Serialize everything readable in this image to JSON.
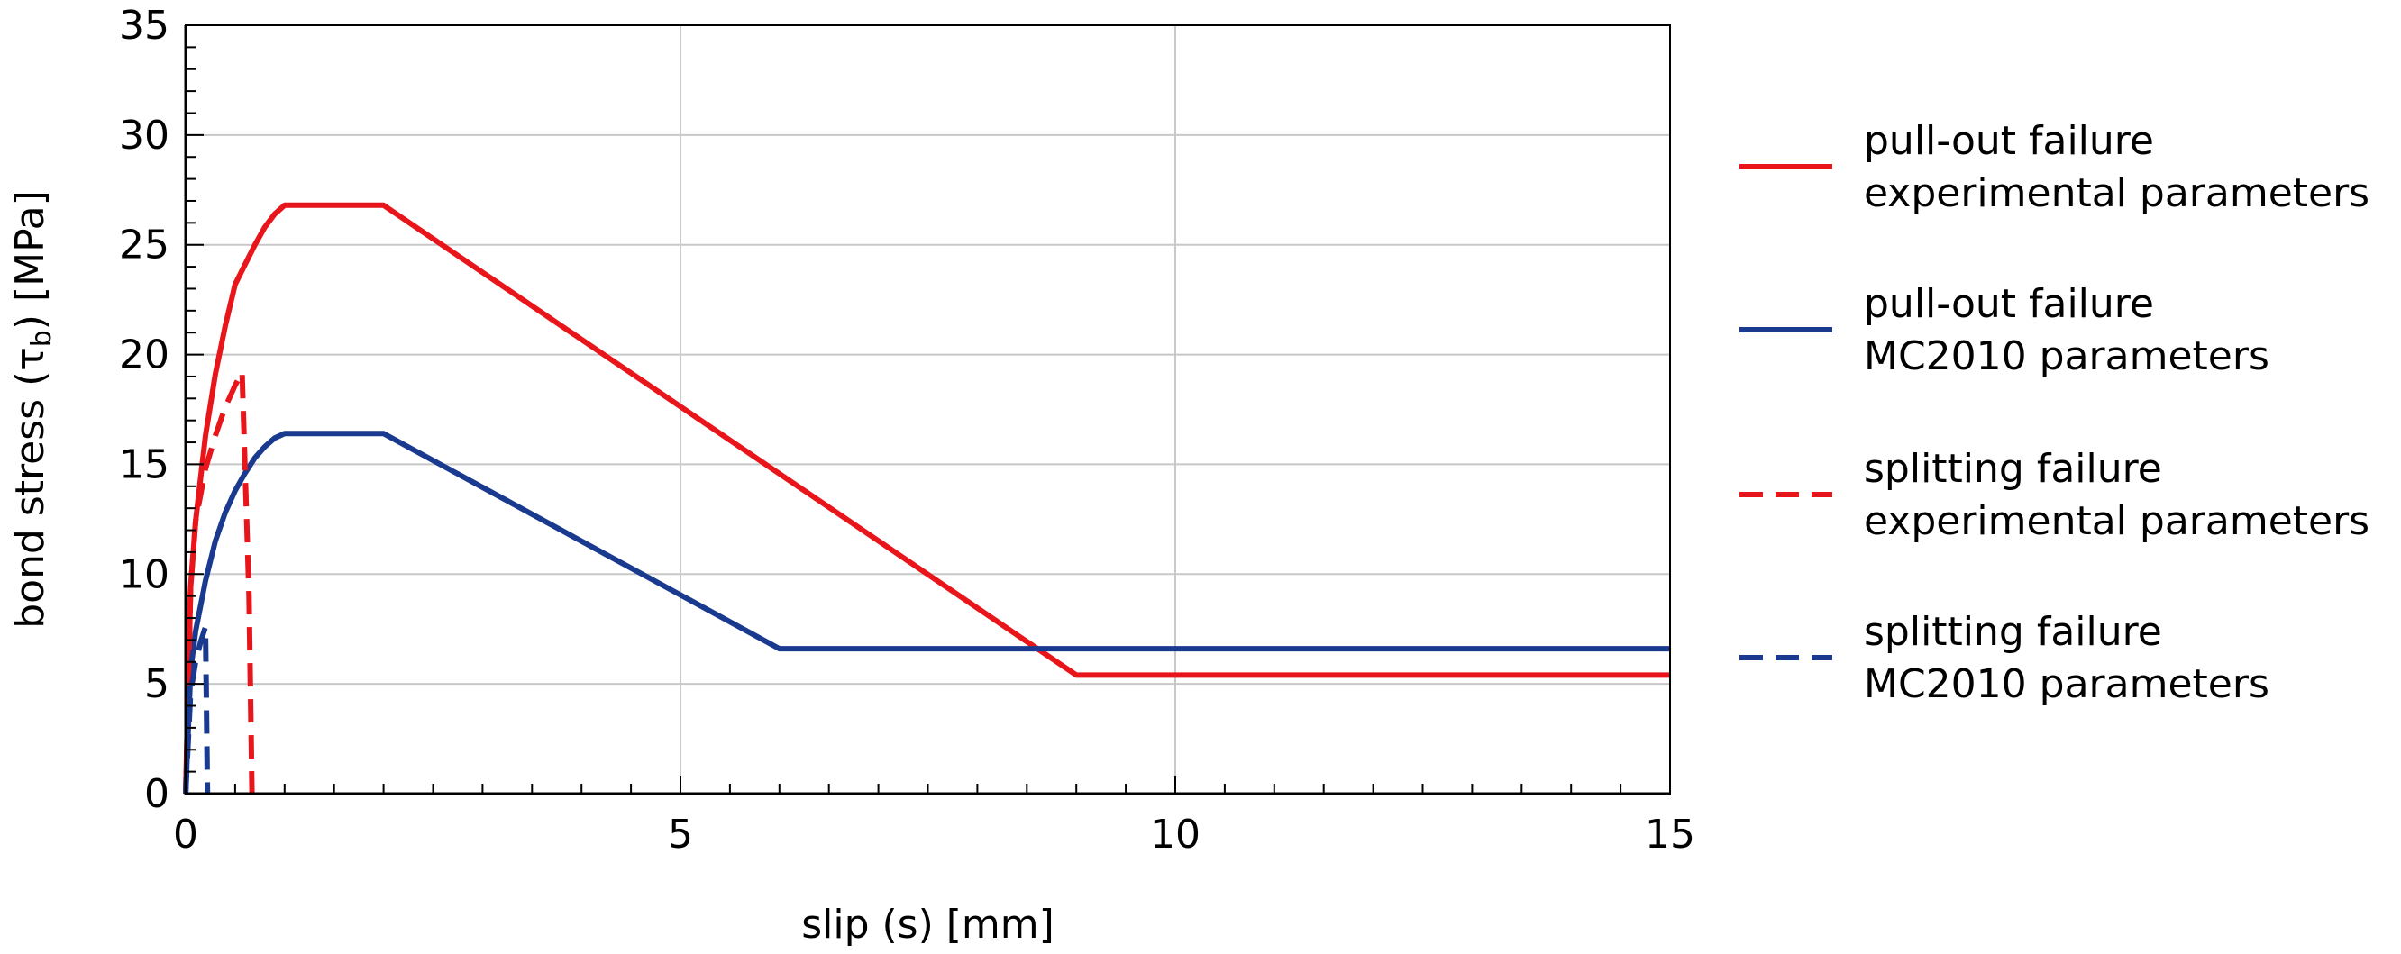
{
  "chart_data": {
    "type": "line",
    "xlabel": "slip (s) [mm]",
    "ylabel": {
      "prefix": "bond stress (τ",
      "subscript": "b",
      "suffix": ") [MPa]"
    },
    "xlim": [
      0,
      15
    ],
    "ylim": [
      0,
      35
    ],
    "x_ticks": [
      0,
      5,
      10,
      15
    ],
    "y_ticks": [
      0,
      5,
      10,
      15,
      20,
      25,
      30,
      35
    ],
    "x_minor_step": 0.5,
    "y_minor_step": 1,
    "grid": true,
    "legend_position": "right",
    "series": [
      {
        "name": "pull-out failure\nexperimental parameters",
        "color": "#e8151b",
        "dash": "solid",
        "points": [
          [
            0,
            0
          ],
          [
            0.05,
            9.4
          ],
          [
            0.1,
            12.4
          ],
          [
            0.2,
            16.3
          ],
          [
            0.3,
            19.1
          ],
          [
            0.4,
            21.3
          ],
          [
            0.5,
            23.2
          ],
          [
            0.6,
            24.1
          ],
          [
            0.7,
            25.0
          ],
          [
            0.8,
            25.8
          ],
          [
            0.9,
            26.4
          ],
          [
            1.0,
            26.8
          ],
          [
            2.0,
            26.8
          ],
          [
            9.0,
            5.4
          ],
          [
            15.0,
            5.4
          ]
        ]
      },
      {
        "name": "pull-out failure\nMC2010 parameters",
        "color": "#1a3a8f",
        "dash": "solid",
        "points": [
          [
            0,
            0
          ],
          [
            0.05,
            5.6
          ],
          [
            0.1,
            7.4
          ],
          [
            0.2,
            9.7
          ],
          [
            0.3,
            11.5
          ],
          [
            0.4,
            12.8
          ],
          [
            0.5,
            13.8
          ],
          [
            0.6,
            14.6
          ],
          [
            0.7,
            15.3
          ],
          [
            0.8,
            15.8
          ],
          [
            0.9,
            16.2
          ],
          [
            1.0,
            16.4
          ],
          [
            2.0,
            16.4
          ],
          [
            6.0,
            6.6
          ],
          [
            15.0,
            6.6
          ]
        ]
      },
      {
        "name": "splitting failure\nexperimental parameters",
        "color": "#e8151b",
        "dash": "dashed",
        "points": [
          [
            0,
            0
          ],
          [
            0.05,
            9.4
          ],
          [
            0.1,
            12.4
          ],
          [
            0.2,
            14.8
          ],
          [
            0.3,
            16.3
          ],
          [
            0.4,
            17.6
          ],
          [
            0.5,
            18.6
          ],
          [
            0.57,
            19.2
          ],
          [
            0.64,
            9.0
          ],
          [
            0.67,
            0
          ]
        ]
      },
      {
        "name": "splitting failure\nMC2010 parameters",
        "color": "#1a3a8f",
        "dash": "dashed",
        "points": [
          [
            0,
            0
          ],
          [
            0.05,
            4.6
          ],
          [
            0.1,
            6.0
          ],
          [
            0.15,
            6.9
          ],
          [
            0.2,
            7.6
          ],
          [
            0.22,
            0
          ]
        ]
      }
    ]
  }
}
